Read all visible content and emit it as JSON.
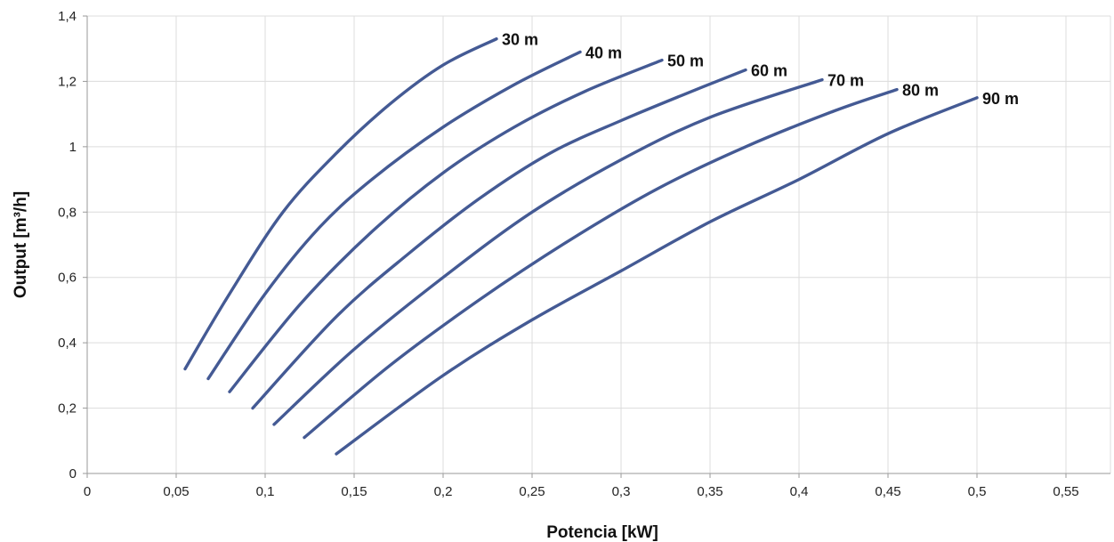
{
  "chart_data": {
    "type": "line",
    "title": "",
    "xlabel": "Potencia  [kW]",
    "ylabel": "Output [m³/h]",
    "xlim": [
      0,
      0.575
    ],
    "ylim": [
      0,
      1.4
    ],
    "x_ticks": [
      {
        "value": 0,
        "label": "0"
      },
      {
        "value": 0.05,
        "label": "0,05"
      },
      {
        "value": 0.1,
        "label": "0,1"
      },
      {
        "value": 0.15,
        "label": "0,15"
      },
      {
        "value": 0.2,
        "label": "0,2"
      },
      {
        "value": 0.25,
        "label": "0,25"
      },
      {
        "value": 0.3,
        "label": "0,3"
      },
      {
        "value": 0.35,
        "label": "0,35"
      },
      {
        "value": 0.4,
        "label": "0,4"
      },
      {
        "value": 0.45,
        "label": "0,45"
      },
      {
        "value": 0.5,
        "label": "0,5"
      },
      {
        "value": 0.55,
        "label": "0,55"
      }
    ],
    "y_ticks": [
      {
        "value": 0,
        "label": "0"
      },
      {
        "value": 0.2,
        "label": "0,2"
      },
      {
        "value": 0.4,
        "label": "0,4"
      },
      {
        "value": 0.6,
        "label": "0,6"
      },
      {
        "value": 0.8,
        "label": "0,8"
      },
      {
        "value": 1,
        "label": "1"
      },
      {
        "value": 1.2,
        "label": "1,2"
      },
      {
        "value": 1.4,
        "label": "1,4"
      }
    ],
    "grid": true,
    "line_color": "#445a94",
    "series": [
      {
        "name": "30 m",
        "points": [
          [
            0.055,
            0.32
          ],
          [
            0.08,
            0.55
          ],
          [
            0.11,
            0.8
          ],
          [
            0.14,
            0.98
          ],
          [
            0.17,
            1.13
          ],
          [
            0.2,
            1.25
          ],
          [
            0.23,
            1.33
          ]
        ]
      },
      {
        "name": "40 m",
        "points": [
          [
            0.068,
            0.29
          ],
          [
            0.1,
            0.55
          ],
          [
            0.13,
            0.75
          ],
          [
            0.16,
            0.9
          ],
          [
            0.2,
            1.06
          ],
          [
            0.24,
            1.19
          ],
          [
            0.277,
            1.29
          ]
        ]
      },
      {
        "name": "50 m",
        "points": [
          [
            0.08,
            0.25
          ],
          [
            0.12,
            0.52
          ],
          [
            0.16,
            0.74
          ],
          [
            0.2,
            0.92
          ],
          [
            0.24,
            1.06
          ],
          [
            0.28,
            1.17
          ],
          [
            0.323,
            1.265
          ]
        ]
      },
      {
        "name": "60 m",
        "points": [
          [
            0.093,
            0.2
          ],
          [
            0.14,
            0.48
          ],
          [
            0.18,
            0.67
          ],
          [
            0.22,
            0.84
          ],
          [
            0.26,
            0.98
          ],
          [
            0.3,
            1.08
          ],
          [
            0.34,
            1.17
          ],
          [
            0.37,
            1.235
          ]
        ]
      },
      {
        "name": "70 m",
        "points": [
          [
            0.105,
            0.15
          ],
          [
            0.15,
            0.38
          ],
          [
            0.2,
            0.6
          ],
          [
            0.25,
            0.8
          ],
          [
            0.3,
            0.96
          ],
          [
            0.35,
            1.09
          ],
          [
            0.413,
            1.205
          ]
        ]
      },
      {
        "name": "80 m",
        "points": [
          [
            0.122,
            0.11
          ],
          [
            0.17,
            0.33
          ],
          [
            0.22,
            0.53
          ],
          [
            0.27,
            0.71
          ],
          [
            0.32,
            0.87
          ],
          [
            0.37,
            1.0
          ],
          [
            0.42,
            1.11
          ],
          [
            0.455,
            1.175
          ]
        ]
      },
      {
        "name": "90 m",
        "points": [
          [
            0.14,
            0.06
          ],
          [
            0.2,
            0.3
          ],
          [
            0.25,
            0.47
          ],
          [
            0.3,
            0.62
          ],
          [
            0.35,
            0.77
          ],
          [
            0.4,
            0.9
          ],
          [
            0.45,
            1.04
          ],
          [
            0.5,
            1.15
          ]
        ]
      }
    ]
  }
}
